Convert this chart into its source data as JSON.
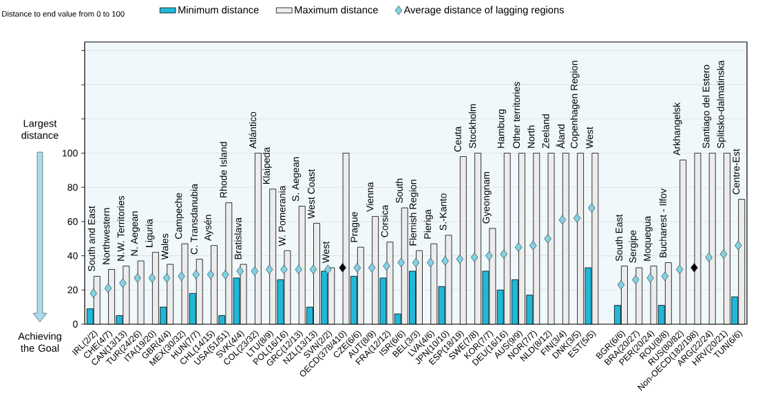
{
  "chart_data": {
    "type": "bar",
    "ylabel": "Distance to end value from 0 to 100",
    "annotations": [
      "Largest distance",
      "Achieving the Goal"
    ],
    "categories": [
      "IRL(2/2)",
      "CHE(4/7)",
      "CAN(13/13)",
      "TUR(24/26)",
      "ITA(19/20)",
      "GBR(4/4)",
      "MEX(30/32)",
      "HUN(7/7)",
      "CHL(14/15)",
      "USA(51/51)",
      "SVK(4/4)",
      "COL(23/32)",
      "LTU(8/9)",
      "POL(16/16)",
      "GRC(12/13)",
      "NZL(13/13)",
      "SVN(2/2)",
      "OECD(378/410)",
      "CZE(6/6)",
      "AUT(8/9)",
      "FRA(12/12)",
      "ISR(6/6)",
      "BEL(3/3)",
      "LVA(4/6)",
      "JPN(10/10)",
      "ESP(18/19)",
      "SWE(7/8)",
      "KOR(7/7)",
      "DEU(16/16)",
      "AUS(9/9)",
      "NOR(7/7)",
      "NLD(8/12)",
      "FIN(3/4)",
      "DNK(3/5)",
      "EST(5/5)",
      null,
      "BGR(6/6)",
      "BRA(20/27)",
      "PER(20/24)",
      "ROU(8/8)",
      "RUS(80/82)",
      "Non-OECD(182/198)",
      "ARG(22/24)",
      "HRV(20/21)",
      "TUN(6/6)"
    ],
    "series": [
      {
        "name": "Minimum distance",
        "color": "#1fb8d9",
        "values": [
          9,
          null,
          5,
          null,
          null,
          10,
          null,
          18,
          null,
          5,
          27,
          null,
          null,
          26,
          null,
          10,
          31,
          null,
          28,
          null,
          27,
          6,
          31,
          null,
          22,
          null,
          null,
          31,
          20,
          26,
          17,
          null,
          null,
          null,
          33,
          null,
          11,
          null,
          null,
          11,
          null,
          null,
          null,
          null,
          16
        ]
      },
      {
        "name": "Maximum distance",
        "color": "#ececec",
        "values": [
          28,
          32,
          34,
          37,
          42,
          35,
          47,
          38,
          46,
          71,
          35,
          100,
          79,
          43,
          69,
          59,
          33,
          100,
          45,
          63,
          48,
          68,
          43,
          47,
          52,
          98,
          100,
          56,
          100,
          100,
          100,
          100,
          100,
          100,
          100,
          null,
          34,
          33,
          34,
          36,
          96,
          100,
          100,
          100,
          73
        ],
        "value_labels": [
          "South and East",
          "Northwestern",
          "N.W. Territories",
          "N. Aegean",
          "Liguria",
          "Wales",
          "Campeche",
          "C. Transdanubia",
          "Aysén",
          "Rhode Island",
          "Bratislava",
          "Atlántico",
          "Klaipeda",
          "W. Pomerania",
          "S. Aegean",
          "West Coast",
          "West",
          null,
          "Prague",
          "Vienna",
          "Corsica",
          "South",
          "Flemish Region",
          "Pieriga",
          "S.-Kanto",
          "Ceuta",
          "Stockholm",
          "Gyeongnam",
          "Hamburg",
          "Other territories",
          "North",
          "Zeeland",
          "Åland",
          "Copenhagen Region",
          "West",
          null,
          "South East",
          "Sergipe",
          "Moquegua",
          "Bucharest - Ilfov",
          "Arkhangelsk",
          null,
          "Santiago del Estero",
          "Splitsko-dalmatinska",
          "Centre-Est"
        ]
      },
      {
        "name": "Average distance of lagging regions",
        "type": "scatter",
        "marker": "diamond",
        "color": "#7fd3e3",
        "values": [
          18,
          21,
          24,
          27,
          27,
          27,
          28,
          29,
          29,
          29,
          31,
          31,
          32,
          32,
          32,
          32,
          32,
          33,
          33,
          33,
          34,
          36,
          36,
          36,
          37,
          38,
          39,
          40,
          41,
          45,
          46,
          50,
          61,
          62,
          68,
          null,
          23,
          26,
          27,
          28,
          32,
          33,
          39,
          41,
          46
        ],
        "colors": [
          "#7fd3e3",
          "#7fd3e3",
          "#7fd3e3",
          "#7fd3e3",
          "#7fd3e3",
          "#7fd3e3",
          "#7fd3e3",
          "#7fd3e3",
          "#7fd3e3",
          "#7fd3e3",
          "#7fd3e3",
          "#7fd3e3",
          "#7fd3e3",
          "#7fd3e3",
          "#7fd3e3",
          "#7fd3e3",
          "#7fd3e3",
          "#000000",
          "#7fd3e3",
          "#7fd3e3",
          "#7fd3e3",
          "#7fd3e3",
          "#7fd3e3",
          "#7fd3e3",
          "#7fd3e3",
          "#7fd3e3",
          "#7fd3e3",
          "#7fd3e3",
          "#7fd3e3",
          "#7fd3e3",
          "#7fd3e3",
          "#7fd3e3",
          "#7fd3e3",
          "#7fd3e3",
          "#7fd3e3",
          "#7fd3e3",
          "#7fd3e3",
          "#7fd3e3",
          "#7fd3e3",
          "#7fd3e3",
          "#7fd3e3",
          "#000000",
          "#7fd3e3",
          "#7fd3e3",
          "#7fd3e3"
        ]
      }
    ],
    "ylim": [
      0,
      165
    ],
    "yticks": [
      0,
      20,
      40,
      60,
      80,
      100,
      {
        "value": 120,
        "label": null
      },
      {
        "value": 140,
        "label": null
      },
      {
        "value": 160,
        "label": null
      }
    ],
    "grid": "y",
    "legend": "top"
  }
}
